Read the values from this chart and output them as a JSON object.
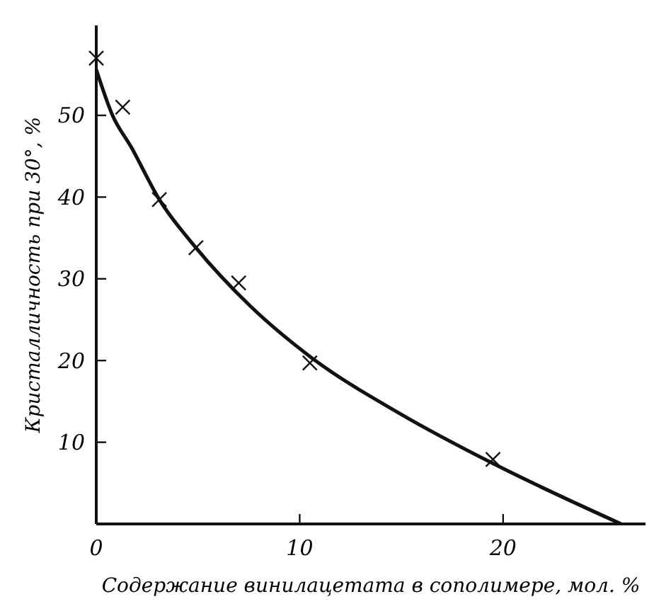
{
  "chart_data": {
    "type": "scatter",
    "xlabel": "Содержание винилацетата в сополимере, мол. %",
    "ylabel": "Кристалличность при 30°, %",
    "xlim": [
      0,
      27
    ],
    "ylim": [
      0,
      61
    ],
    "xticks": [
      0,
      10,
      20
    ],
    "yticks": [
      10,
      20,
      30,
      40,
      50
    ],
    "grid": false,
    "series": [
      {
        "type": "line",
        "color": "#111111",
        "line_style": "solid",
        "marker": "none",
        "x": [
          0,
          0.8,
          1.7,
          3.1,
          4.9,
          7.6,
          10.5,
          15,
          19.5,
          25.8
        ],
        "values": [
          55.6,
          50,
          46.2,
          39.7,
          33.8,
          26.6,
          20.5,
          13.4,
          7.4,
          0
        ]
      },
      {
        "type": "scatter",
        "color": "#111111",
        "marker": "cross",
        "x": [
          0,
          1.3,
          3.1,
          4.9,
          7,
          10.5,
          19.5
        ],
        "values": [
          57,
          51,
          39.7,
          33.8,
          29.5,
          19.7,
          7.9
        ]
      }
    ]
  }
}
